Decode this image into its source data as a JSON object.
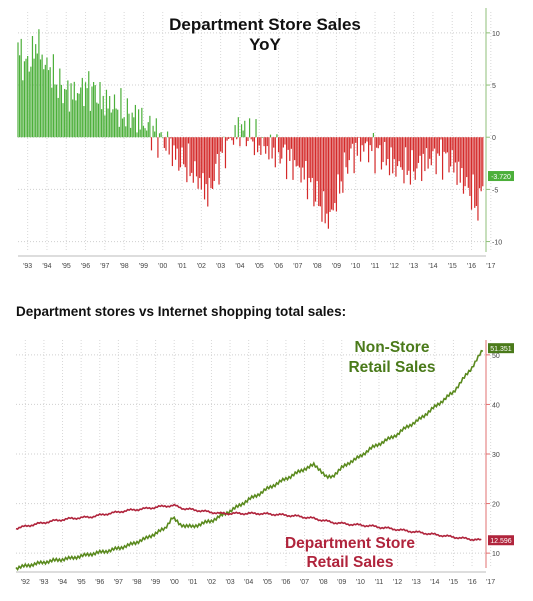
{
  "chart_data": [
    {
      "type": "bar",
      "title": "Department Store Sales",
      "subtitle": "YoY",
      "x_range": [
        1993,
        2017.25
      ],
      "ylim": [
        -11,
        12
      ],
      "y_ticks": [
        10,
        5,
        0,
        -5,
        -10
      ],
      "x_ticks": [
        "'93",
        "'94",
        "'95",
        "'96",
        "'97",
        "'98",
        "'99",
        "'00",
        "'01",
        "'02",
        "'03",
        "'04",
        "'05",
        "'06",
        "'07",
        "'08",
        "'09",
        "'10",
        "'11",
        "'12",
        "'13",
        "'14",
        "'15",
        "'16",
        "'17"
      ],
      "last_value_label": "-3.720",
      "colors": {
        "positive": "#4caf3a",
        "negative": "#d42a2a",
        "label_bg": "#4caf3a"
      },
      "keypoints": [
        [
          1993.0,
          8.5
        ],
        [
          1993.4,
          6.8
        ],
        [
          1993.8,
          8.0
        ],
        [
          1994.0,
          9.3
        ],
        [
          1994.3,
          7.2
        ],
        [
          1994.7,
          6.5
        ],
        [
          1995.0,
          5.2
        ],
        [
          1995.5,
          4.3
        ],
        [
          1996.0,
          4.2
        ],
        [
          1996.5,
          4.8
        ],
        [
          1997.0,
          4.5
        ],
        [
          1997.3,
          3.5
        ],
        [
          1997.8,
          3.2
        ],
        [
          1998.0,
          3.0
        ],
        [
          1998.5,
          2.2
        ],
        [
          1999.0,
          2.0
        ],
        [
          1999.3,
          1.8
        ],
        [
          1999.7,
          1.0
        ],
        [
          2000.0,
          0.6
        ],
        [
          2000.5,
          -0.3
        ],
        [
          2000.9,
          -1.0
        ],
        [
          2001.2,
          -2.0
        ],
        [
          2001.6,
          -2.5
        ],
        [
          2002.0,
          -3.2
        ],
        [
          2002.5,
          -4.5
        ],
        [
          2002.9,
          -5.5
        ],
        [
          2003.2,
          -3.5
        ],
        [
          2003.6,
          -1.5
        ],
        [
          2004.0,
          -0.3
        ],
        [
          2004.5,
          0.8
        ],
        [
          2005.0,
          0.2
        ],
        [
          2005.5,
          -0.8
        ],
        [
          2006.0,
          -1.2
        ],
        [
          2006.5,
          -1.5
        ],
        [
          2007.0,
          -2.0
        ],
        [
          2007.5,
          -3.0
        ],
        [
          2008.0,
          -4.0
        ],
        [
          2008.4,
          -5.5
        ],
        [
          2008.8,
          -7.0
        ],
        [
          2009.1,
          -8.0
        ],
        [
          2009.4,
          -6.5
        ],
        [
          2009.8,
          -4.0
        ],
        [
          2010.2,
          -1.8
        ],
        [
          2010.7,
          -1.2
        ],
        [
          2011.0,
          -1.0
        ],
        [
          2011.5,
          -1.3
        ],
        [
          2012.0,
          -2.0
        ],
        [
          2012.5,
          -2.8
        ],
        [
          2013.0,
          -3.0
        ],
        [
          2013.5,
          -3.2
        ],
        [
          2014.0,
          -2.5
        ],
        [
          2014.5,
          -2.0
        ],
        [
          2015.0,
          -1.8
        ],
        [
          2015.5,
          -2.5
        ],
        [
          2016.0,
          -4.0
        ],
        [
          2016.5,
          -5.5
        ],
        [
          2016.9,
          -7.0
        ],
        [
          2017.0,
          -5.0
        ],
        [
          2017.1,
          -3.7
        ]
      ]
    },
    {
      "type": "line",
      "title": "Department stores vs Internet shopping total sales:",
      "x_range": [
        1992,
        2017.25
      ],
      "ylim": [
        7,
        53
      ],
      "y_ticks": [
        50,
        40,
        30,
        20,
        10
      ],
      "x_ticks": [
        "'92",
        "'93",
        "'94",
        "'95",
        "'96",
        "'97",
        "'98",
        "'99",
        "'00",
        "'01",
        "'02",
        "'03",
        "'04",
        "'05",
        "'06",
        "'07",
        "'08",
        "'09",
        "'10",
        "'11",
        "'12",
        "'13",
        "'14",
        "'15",
        "'16",
        "'17"
      ],
      "series": [
        {
          "name": "Non-Store Retail Sales",
          "color": "#5a8a1e",
          "end_label": "51.351",
          "points": [
            [
              1992.0,
              7.0
            ],
            [
              1993.0,
              7.8
            ],
            [
              1994.0,
              8.5
            ],
            [
              1995.0,
              9.0
            ],
            [
              1996.0,
              9.8
            ],
            [
              1997.0,
              10.5
            ],
            [
              1998.0,
              11.5
            ],
            [
              1999.0,
              13.0
            ],
            [
              2000.0,
              15.0
            ],
            [
              2000.4,
              17.2
            ],
            [
              2000.8,
              15.8
            ],
            [
              2001.0,
              15.6
            ],
            [
              2001.5,
              15.3
            ],
            [
              2002.0,
              16.0
            ],
            [
              2002.5,
              16.5
            ],
            [
              2003.0,
              17.5
            ],
            [
              2003.5,
              18.5
            ],
            [
              2004.0,
              19.6
            ],
            [
              2004.5,
              20.8
            ],
            [
              2005.0,
              21.8
            ],
            [
              2005.5,
              23.0
            ],
            [
              2006.0,
              24.0
            ],
            [
              2006.5,
              25.0
            ],
            [
              2007.0,
              26.0
            ],
            [
              2007.5,
              27.0
            ],
            [
              2008.0,
              27.8
            ],
            [
              2008.3,
              27.0
            ],
            [
              2008.7,
              25.2
            ],
            [
              2009.0,
              25.5
            ],
            [
              2009.5,
              27.2
            ],
            [
              2010.0,
              28.5
            ],
            [
              2010.5,
              29.5
            ],
            [
              2011.0,
              31.0
            ],
            [
              2011.5,
              32.0
            ],
            [
              2012.0,
              33.0
            ],
            [
              2012.5,
              34.0
            ],
            [
              2013.0,
              35.5
            ],
            [
              2013.5,
              36.5
            ],
            [
              2014.0,
              38.0
            ],
            [
              2014.5,
              39.5
            ],
            [
              2015.0,
              41.0
            ],
            [
              2015.5,
              42.5
            ],
            [
              2016.0,
              45.0
            ],
            [
              2016.5,
              47.5
            ],
            [
              2017.0,
              50.5
            ],
            [
              2017.15,
              51.35
            ]
          ]
        },
        {
          "name": "Department Store Retail Sales",
          "color": "#b0243c",
          "end_label": "12.596",
          "points": [
            [
              1992.0,
              15.0
            ],
            [
              1993.0,
              15.8
            ],
            [
              1994.0,
              16.5
            ],
            [
              1995.0,
              17.0
            ],
            [
              1996.0,
              17.3
            ],
            [
              1997.0,
              18.0
            ],
            [
              1998.0,
              18.6
            ],
            [
              1999.0,
              19.0
            ],
            [
              2000.0,
              19.5
            ],
            [
              2000.5,
              19.6
            ],
            [
              2001.0,
              19.0
            ],
            [
              2002.0,
              18.5
            ],
            [
              2003.0,
              18.0
            ],
            [
              2004.0,
              18.0
            ],
            [
              2005.0,
              18.0
            ],
            [
              2006.0,
              17.8
            ],
            [
              2007.0,
              17.5
            ],
            [
              2008.0,
              17.0
            ],
            [
              2009.0,
              16.2
            ],
            [
              2010.0,
              15.8
            ],
            [
              2011.0,
              15.5
            ],
            [
              2012.0,
              15.0
            ],
            [
              2013.0,
              14.5
            ],
            [
              2014.0,
              14.0
            ],
            [
              2015.0,
              13.5
            ],
            [
              2016.0,
              13.0
            ],
            [
              2017.0,
              12.6
            ]
          ]
        }
      ]
    }
  ]
}
